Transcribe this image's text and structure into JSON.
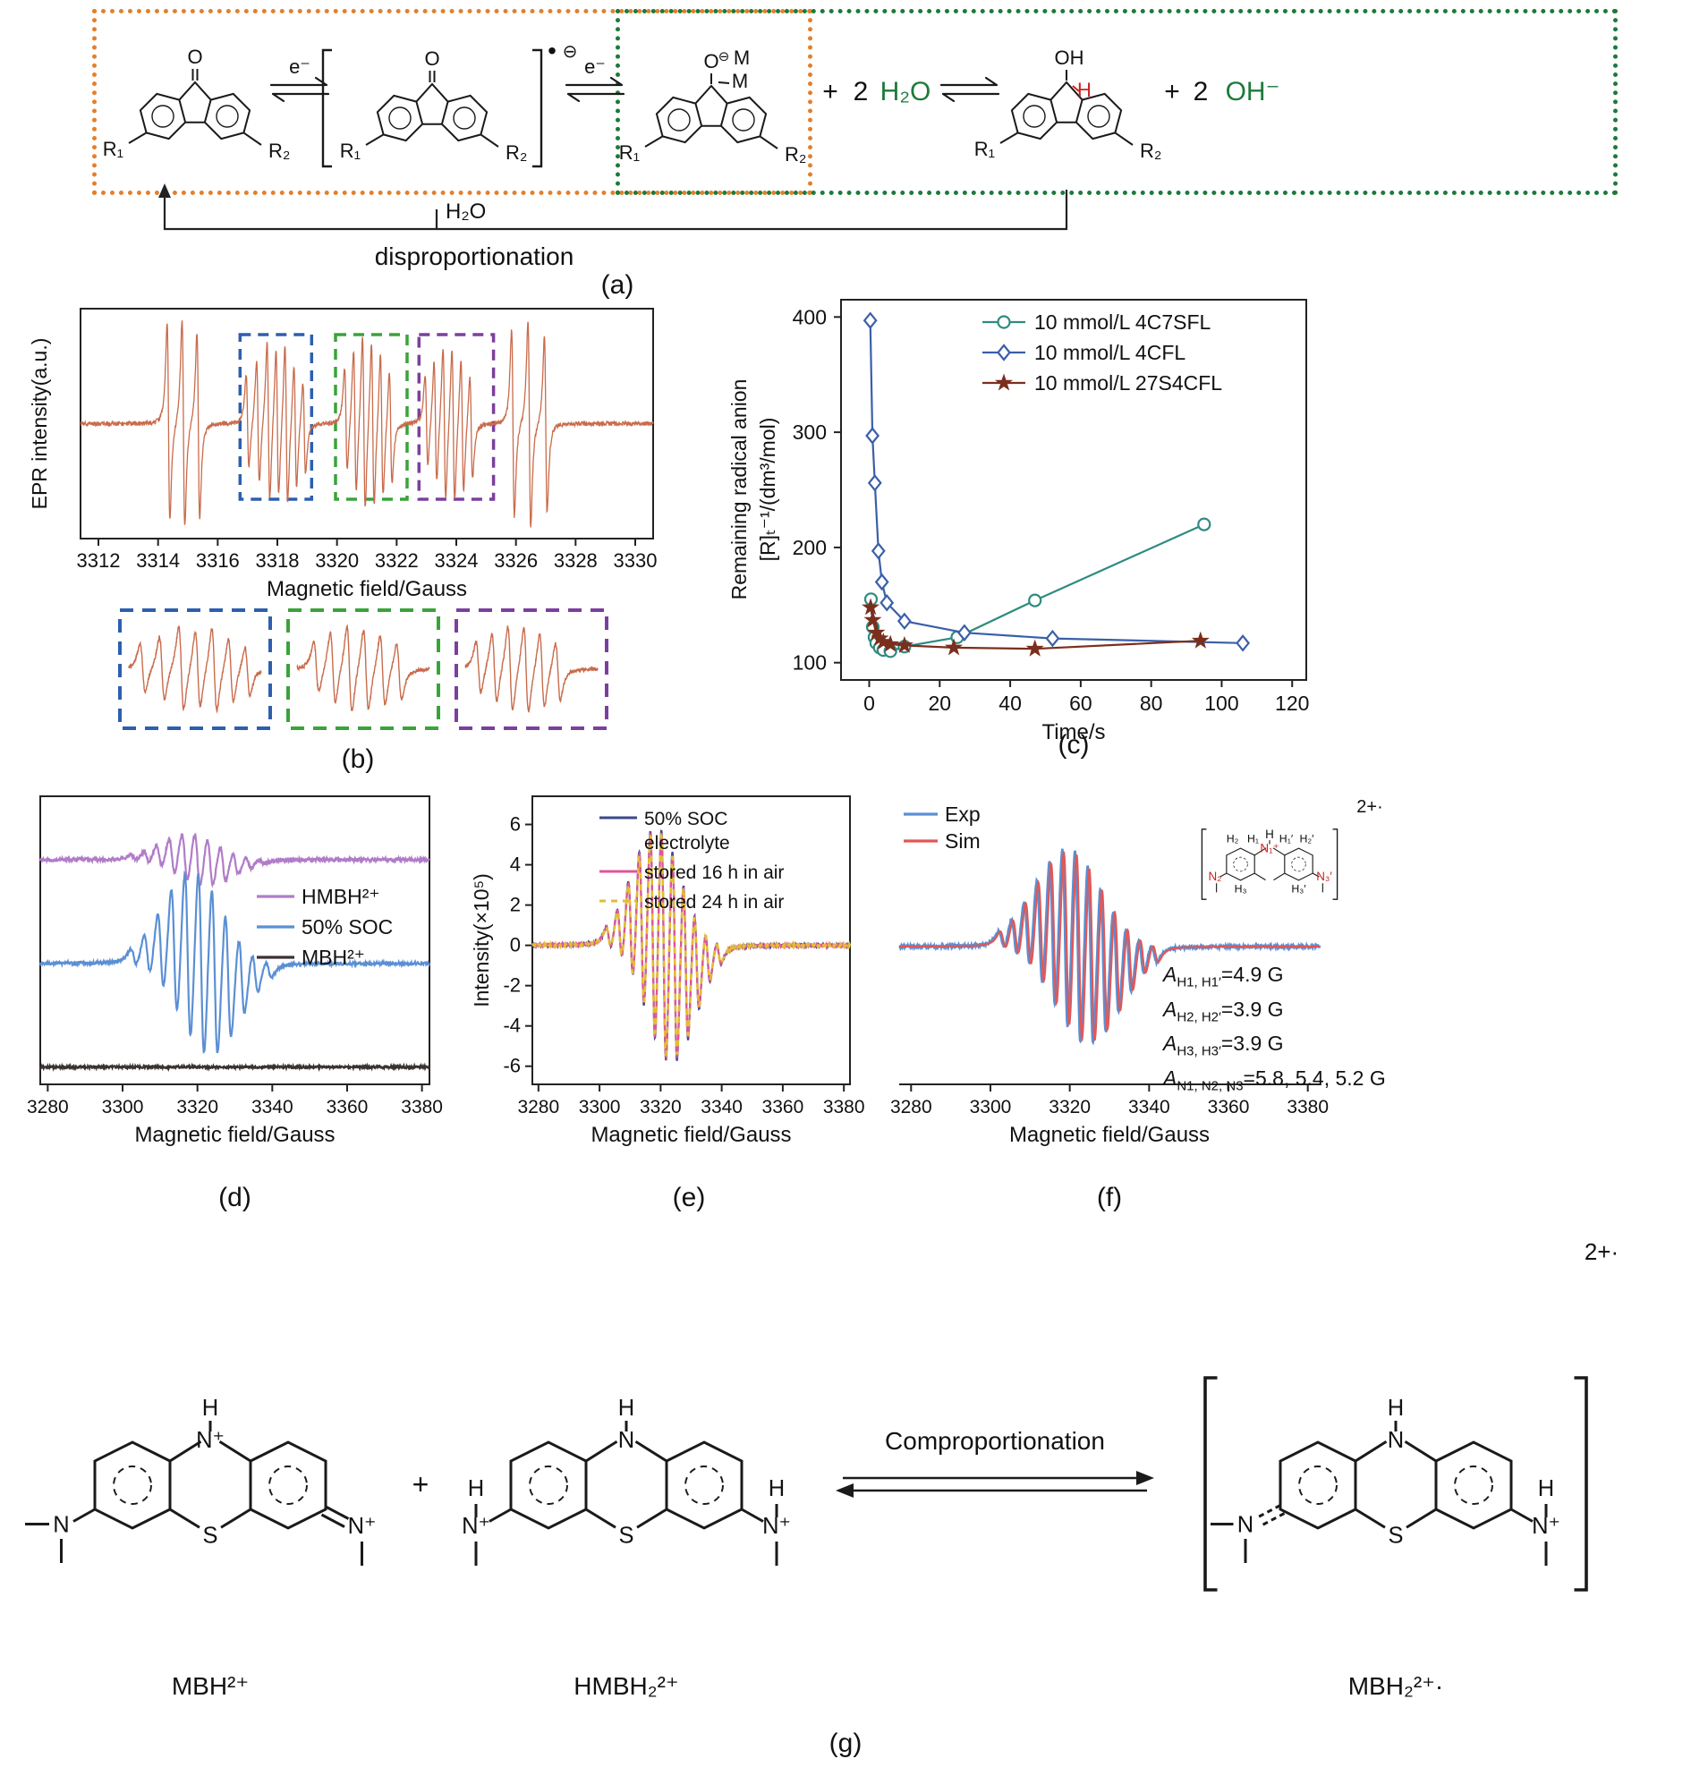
{
  "panel_a": {
    "o": "O",
    "oh": "OH",
    "h_red": "H",
    "m_top": "M",
    "m_bottom": "M",
    "minus_circle": "⊖",
    "radical_dot": "•",
    "r1": "R₁",
    "r2": "R₂",
    "e": "e⁻",
    "plus": "+",
    "two": "2",
    "h2o": "H₂O",
    "oh_minus": "OH⁻",
    "arrow_h2o": "H₂O",
    "dispro": "disproportionation",
    "caption": "(a)",
    "box_colors": {
      "reduction": "#e2802d",
      "protonation": "#1d7a3a"
    }
  },
  "chart_data": [
    {
      "id": "epr-b",
      "type": "line",
      "xlabel": "Magnetic field/Gauss",
      "ylabel": "EPR intensity(a.u.)",
      "xlim": [
        3311.4,
        3330.6
      ],
      "xticks": [
        3312,
        3314,
        3316,
        3318,
        3320,
        3322,
        3324,
        3326,
        3328,
        3330
      ],
      "trace_color": "#c96b4b",
      "line_width_gauss": 0.08,
      "epr_lines": [
        [
          3314.35,
          0.95
        ],
        [
          3314.85,
          1.0
        ],
        [
          3315.35,
          0.9
        ],
        [
          3317.0,
          0.45
        ],
        [
          3317.35,
          0.6
        ],
        [
          3317.7,
          0.78
        ],
        [
          3318.0,
          0.72
        ],
        [
          3318.3,
          0.78
        ],
        [
          3318.6,
          0.6
        ],
        [
          3318.9,
          0.45
        ],
        [
          3320.3,
          0.5
        ],
        [
          3320.6,
          0.7
        ],
        [
          3320.9,
          0.85
        ],
        [
          3321.2,
          0.8
        ],
        [
          3321.5,
          0.7
        ],
        [
          3321.8,
          0.55
        ],
        [
          3323.0,
          0.45
        ],
        [
          3323.3,
          0.6
        ],
        [
          3323.6,
          0.75
        ],
        [
          3323.9,
          0.75
        ],
        [
          3324.2,
          0.65
        ],
        [
          3324.5,
          0.5
        ],
        [
          3325.9,
          0.9
        ],
        [
          3326.45,
          1.0
        ],
        [
          3327.0,
          0.85
        ]
      ],
      "noise": 0.02,
      "highlight_boxes": [
        {
          "x0": 3316.75,
          "x1": 3319.15,
          "color": "#2d5fae"
        },
        {
          "x0": 3319.95,
          "x1": 3322.35,
          "color": "#3aa33a"
        },
        {
          "x0": 3322.75,
          "x1": 3325.25,
          "color": "#7b3f9e"
        }
      ],
      "inset_ranges": [
        [
          3316.75,
          3319.15
        ],
        [
          3319.95,
          3322.35
        ],
        [
          3322.75,
          3325.25
        ]
      ],
      "caption": "(b)"
    },
    {
      "id": "kinetics-c",
      "type": "scatter-line",
      "xlabel": "Time/s",
      "ylabel": [
        "Remaining radical anion",
        "[R]ₜ⁻¹/(dm³/mol)"
      ],
      "xlim": [
        -8,
        124
      ],
      "ylim": [
        85,
        415
      ],
      "xticks": [
        0,
        20,
        40,
        60,
        80,
        100,
        120
      ],
      "yticks": [
        100,
        200,
        300,
        400
      ],
      "series": [
        {
          "name": "10 mmol/L 4C7SFL",
          "color": "#2e8b80",
          "marker": "circle",
          "points": [
            [
              0.5,
              155
            ],
            [
              1,
              131
            ],
            [
              1.5,
              122
            ],
            [
              2,
              117
            ],
            [
              3,
              113
            ],
            [
              4,
              111
            ],
            [
              6,
              110
            ],
            [
              10,
              114
            ],
            [
              25,
              122
            ],
            [
              47,
              154
            ],
            [
              95,
              220
            ]
          ]
        },
        {
          "name": "10 mmol/L 4CFL",
          "color": "#3a5fa8",
          "marker": "diamond",
          "points": [
            [
              0.3,
              397
            ],
            [
              0.9,
              297
            ],
            [
              1.6,
              256
            ],
            [
              2.6,
              197
            ],
            [
              3.6,
              170
            ],
            [
              5,
              152
            ],
            [
              10,
              136
            ],
            [
              27,
              126
            ],
            [
              52,
              121
            ],
            [
              106,
              117
            ]
          ]
        },
        {
          "name": "10 mmol/L 27S4CFL",
          "color": "#7a2f1d",
          "marker": "star",
          "points": [
            [
              0.4,
              148
            ],
            [
              1,
              137
            ],
            [
              2,
              126
            ],
            [
              3,
              121
            ],
            [
              4,
              118
            ],
            [
              6,
              116
            ],
            [
              10,
              115
            ],
            [
              24,
              113
            ],
            [
              47,
              112
            ],
            [
              94,
              119
            ]
          ]
        }
      ],
      "caption": "(c)"
    },
    {
      "id": "epr-d",
      "type": "epr-stack",
      "xlabel": "Magnetic field/Gauss",
      "xlim": [
        3278,
        3382
      ],
      "xticks": [
        3280,
        3300,
        3320,
        3340,
        3360,
        3380
      ],
      "series": [
        {
          "name": "HMBH²⁺",
          "color": "#b07cc8",
          "center": 3320,
          "spacing": 3.4,
          "width": 1.5,
          "lines": 11,
          "amp": 0.28,
          "offset": 0.78,
          "noise": 0.012
        },
        {
          "name": "50% SOC",
          "color": "#5b8fd4",
          "center": 3321,
          "spacing": 3.6,
          "width": 1.5,
          "lines": 11,
          "amp": 1.0,
          "offset": 0.42,
          "noise": 0.01
        },
        {
          "name": "MBH²⁺",
          "color": "#3a3230",
          "center": 3321,
          "spacing": 3.6,
          "width": 1.5,
          "lines": 11,
          "amp": 0.0,
          "offset": 0.06,
          "noise": 0.008
        }
      ],
      "caption": "(d)"
    },
    {
      "id": "epr-e",
      "type": "epr-overlay",
      "xlabel": "Magnetic field/Gauss",
      "ylabel": "Intensity(×10⁵)",
      "xlim": [
        3278,
        3382
      ],
      "ylim": [
        -6.9,
        7.4
      ],
      "xticks": [
        3280,
        3300,
        3320,
        3340,
        3360,
        3380
      ],
      "yticks": [
        -6,
        -4,
        -2,
        0,
        2,
        4,
        6
      ],
      "packet": {
        "center": 3321,
        "spacing": 3.6,
        "width": 1.5,
        "lines": 11
      },
      "series": [
        {
          "name": "50% SOC electrolyte",
          "label_lines": [
            "50% SOC",
            "electrolyte"
          ],
          "color": "#3b4a8c",
          "amp": 5.7
        },
        {
          "name": "stored 16 h in air",
          "label_lines": [
            "stored 16 h in air"
          ],
          "color": "#e0559a",
          "amp": 5.55
        },
        {
          "name": "stored 24 h in air",
          "label_lines": [
            "stored 24 h in air"
          ],
          "color": "#e2bc35",
          "amp": 5.45,
          "dash": "7 6"
        }
      ],
      "caption": "(e)"
    },
    {
      "id": "epr-f",
      "type": "epr-overlay-axis",
      "xlabel": "Magnetic field/Gauss",
      "xlim": [
        3277,
        3383
      ],
      "xticks": [
        3280,
        3300,
        3320,
        3340,
        3360,
        3380
      ],
      "packet": {
        "center": 3322,
        "spacing": 3.2,
        "width": 1.4,
        "lines": 13
      },
      "series": [
        {
          "name": "Exp",
          "color": "#5b8fd4",
          "amp": 1.0,
          "shift": 0
        },
        {
          "name": "Sim",
          "color": "#e05858",
          "amp": 0.97,
          "shift": 0.4
        }
      ],
      "caption": "(f)"
    }
  ],
  "panel_f": {
    "inset": {
      "h_top": "H",
      "n1": "N₁⁺",
      "h1": "H₁",
      "h1p": "H₁′",
      "h2": "H₂",
      "h2p": "H₂′",
      "h3": "H₃",
      "h3p": "H₃′",
      "n2": "N₂",
      "n3p": "N₃′",
      "charge": "2+·"
    },
    "hyperfine": [
      {
        "pre": "A",
        "sub": "H1, H1′",
        "rest": "=4.9 G"
      },
      {
        "pre": "A",
        "sub": "H2, H2′",
        "rest": "=3.9 G"
      },
      {
        "pre": "A",
        "sub": "H3, H3′",
        "rest": "=3.9 G"
      },
      {
        "pre": "A",
        "sub": "N1, N2, N3",
        "rest": "=5.8, 5.4, 5.2 G"
      }
    ]
  },
  "panel_g": {
    "plus": "+",
    "arrow_label": "Comproportionation",
    "caption": "(g)",
    "s1": {
      "top_h": "H",
      "top_n": "N⁺",
      "left_n": "N",
      "right_n": "N⁺",
      "s": "S",
      "name": "MBH²⁺"
    },
    "s2": {
      "top_h": "H",
      "top_n": "N",
      "left_n": "N⁺",
      "left_h": "H",
      "right_n": "N⁺",
      "right_h": "H",
      "s": "S",
      "name": "HMBH₂²⁺"
    },
    "s3": {
      "top_h": "H",
      "top_n": "N",
      "left_n": "N",
      "right_n": "N⁺",
      "right_h": "H",
      "s": "S",
      "name": "MBH₂²⁺·",
      "charge": "2+·"
    }
  }
}
